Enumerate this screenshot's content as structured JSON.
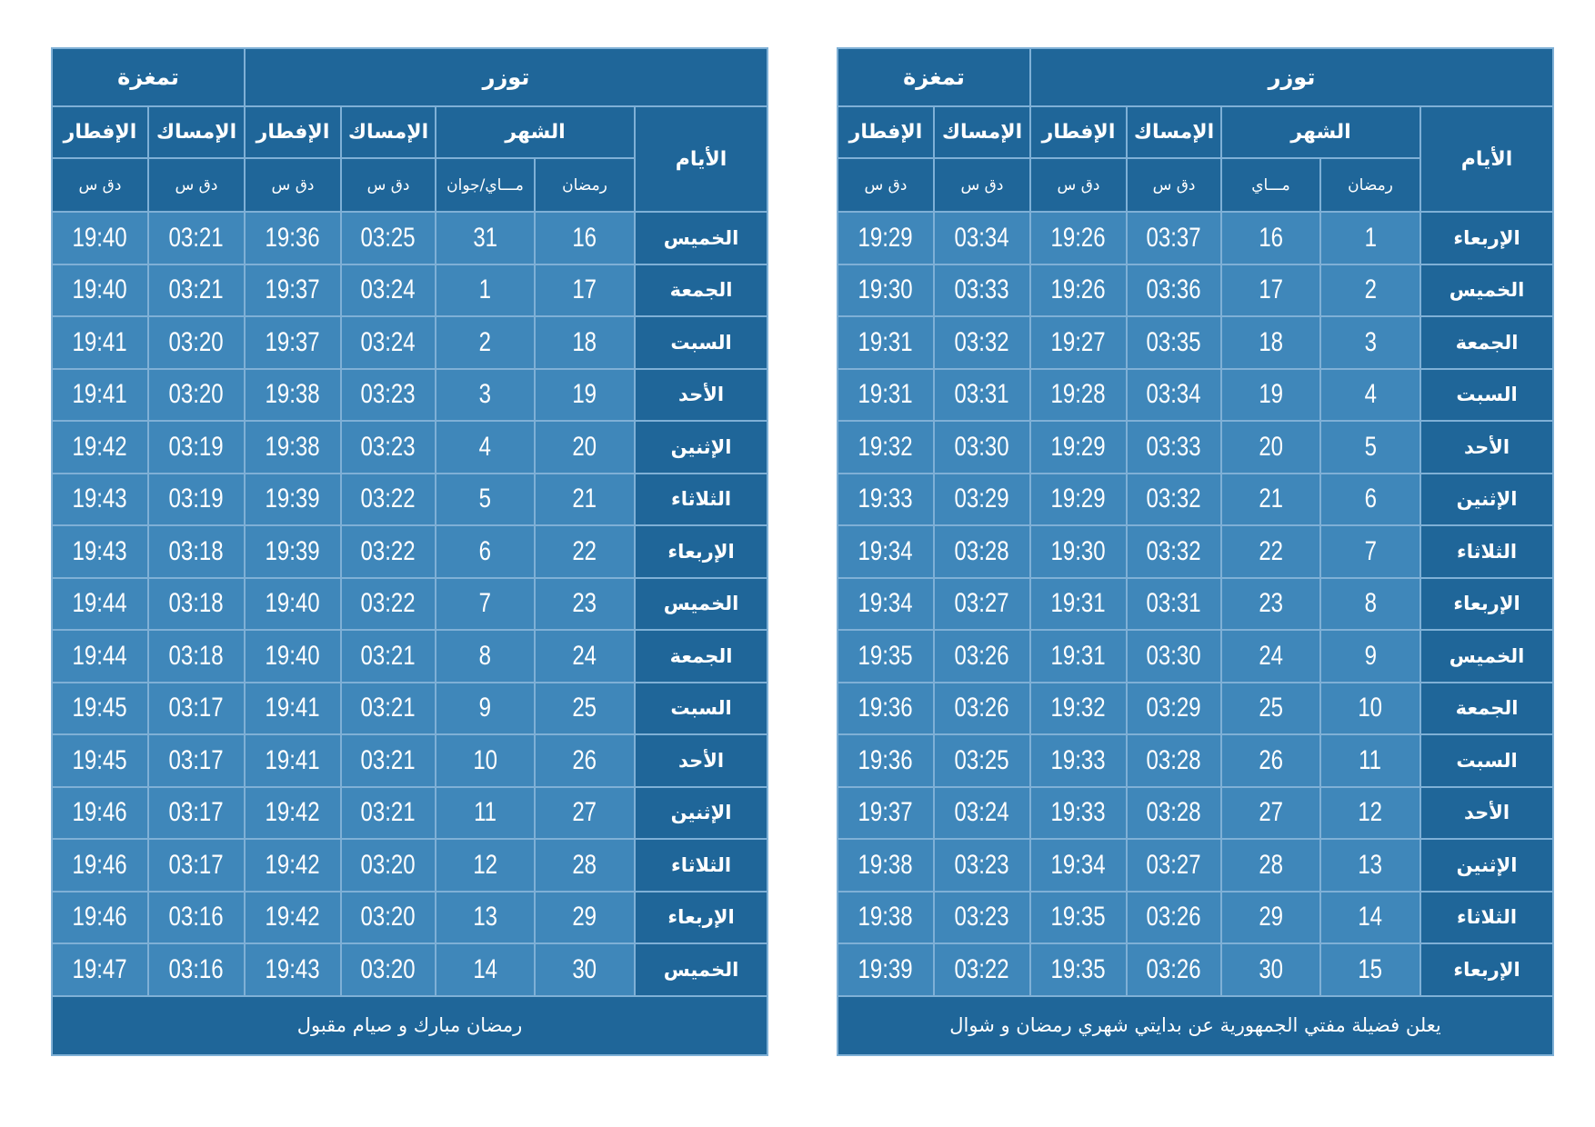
{
  "tables": [
    {
      "header": {
        "groups": [
          "توزر",
          "تمغزة"
        ],
        "columns": [
          "الأيام",
          "الشهر",
          "الإمساك",
          "الإفطار",
          "الإمساك",
          "الإفطار"
        ],
        "units": [
          "رمضان",
          "مـــاي",
          "دق س",
          "دق س",
          "دق س",
          "دق س"
        ]
      },
      "rows": [
        [
          "الإربعاء",
          "1",
          "16",
          "03:37",
          "19:26",
          "03:34",
          "19:29"
        ],
        [
          "الخميس",
          "2",
          "17",
          "03:36",
          "19:26",
          "03:33",
          "19:30"
        ],
        [
          "الجمعة",
          "3",
          "18",
          "03:35",
          "19:27",
          "03:32",
          "19:31"
        ],
        [
          "السبت",
          "4",
          "19",
          "03:34",
          "19:28",
          "03:31",
          "19:31"
        ],
        [
          "الأحد",
          "5",
          "20",
          "03:33",
          "19:29",
          "03:30",
          "19:32"
        ],
        [
          "الإثنين",
          "6",
          "21",
          "03:32",
          "19:29",
          "03:29",
          "19:33"
        ],
        [
          "الثلاثاء",
          "7",
          "22",
          "03:32",
          "19:30",
          "03:28",
          "19:34"
        ],
        [
          "الإربعاء",
          "8",
          "23",
          "03:31",
          "19:31",
          "03:27",
          "19:34"
        ],
        [
          "الخميس",
          "9",
          "24",
          "03:30",
          "19:31",
          "03:26",
          "19:35"
        ],
        [
          "الجمعة",
          "10",
          "25",
          "03:29",
          "19:32",
          "03:26",
          "19:36"
        ],
        [
          "السبت",
          "11",
          "26",
          "03:28",
          "19:33",
          "03:25",
          "19:36"
        ],
        [
          "الأحد",
          "12",
          "27",
          "03:28",
          "19:33",
          "03:24",
          "19:37"
        ],
        [
          "الإثنين",
          "13",
          "28",
          "03:27",
          "19:34",
          "03:23",
          "19:38"
        ],
        [
          "الثلاثاء",
          "14",
          "29",
          "03:26",
          "19:35",
          "03:23",
          "19:38"
        ],
        [
          "الإربعاء",
          "15",
          "30",
          "03:26",
          "19:35",
          "03:22",
          "19:39"
        ]
      ],
      "footer": "يعلن فضيلة مفتي الجمهورية عن بدايتي شهري رمضان و شوال"
    },
    {
      "header": {
        "groups": [
          "توزر",
          "تمغزة"
        ],
        "columns": [
          "الأيام",
          "الشهر",
          "الإمساك",
          "الإفطار",
          "الإمساك",
          "الإفطار"
        ],
        "units": [
          "رمضان",
          "مـــاي/جوان",
          "دق س",
          "دق س",
          "دق س",
          "دق س"
        ]
      },
      "rows": [
        [
          "الخميس",
          "16",
          "31",
          "03:25",
          "19:36",
          "03:21",
          "19:40"
        ],
        [
          "الجمعة",
          "17",
          "1",
          "03:24",
          "19:37",
          "03:21",
          "19:40"
        ],
        [
          "السبت",
          "18",
          "2",
          "03:24",
          "19:37",
          "03:20",
          "19:41"
        ],
        [
          "الأحد",
          "19",
          "3",
          "03:23",
          "19:38",
          "03:20",
          "19:41"
        ],
        [
          "الإثنين",
          "20",
          "4",
          "03:23",
          "19:38",
          "03:19",
          "19:42"
        ],
        [
          "الثلاثاء",
          "21",
          "5",
          "03:22",
          "19:39",
          "03:19",
          "19:43"
        ],
        [
          "الإربعاء",
          "22",
          "6",
          "03:22",
          "19:39",
          "03:18",
          "19:43"
        ],
        [
          "الخميس",
          "23",
          "7",
          "03:22",
          "19:40",
          "03:18",
          "19:44"
        ],
        [
          "الجمعة",
          "24",
          "8",
          "03:21",
          "19:40",
          "03:18",
          "19:44"
        ],
        [
          "السبت",
          "25",
          "9",
          "03:21",
          "19:41",
          "03:17",
          "19:45"
        ],
        [
          "الأحد",
          "26",
          "10",
          "03:21",
          "19:41",
          "03:17",
          "19:45"
        ],
        [
          "الإثنين",
          "27",
          "11",
          "03:21",
          "19:42",
          "03:17",
          "19:46"
        ],
        [
          "الثلاثاء",
          "28",
          "12",
          "03:20",
          "19:42",
          "03:17",
          "19:46"
        ],
        [
          "الإربعاء",
          "29",
          "13",
          "03:20",
          "19:42",
          "03:16",
          "19:46"
        ],
        [
          "الخميس",
          "30",
          "14",
          "03:20",
          "19:43",
          "03:16",
          "19:47"
        ]
      ],
      "footer": "رمضان مبارك و صيام مقبول"
    }
  ]
}
